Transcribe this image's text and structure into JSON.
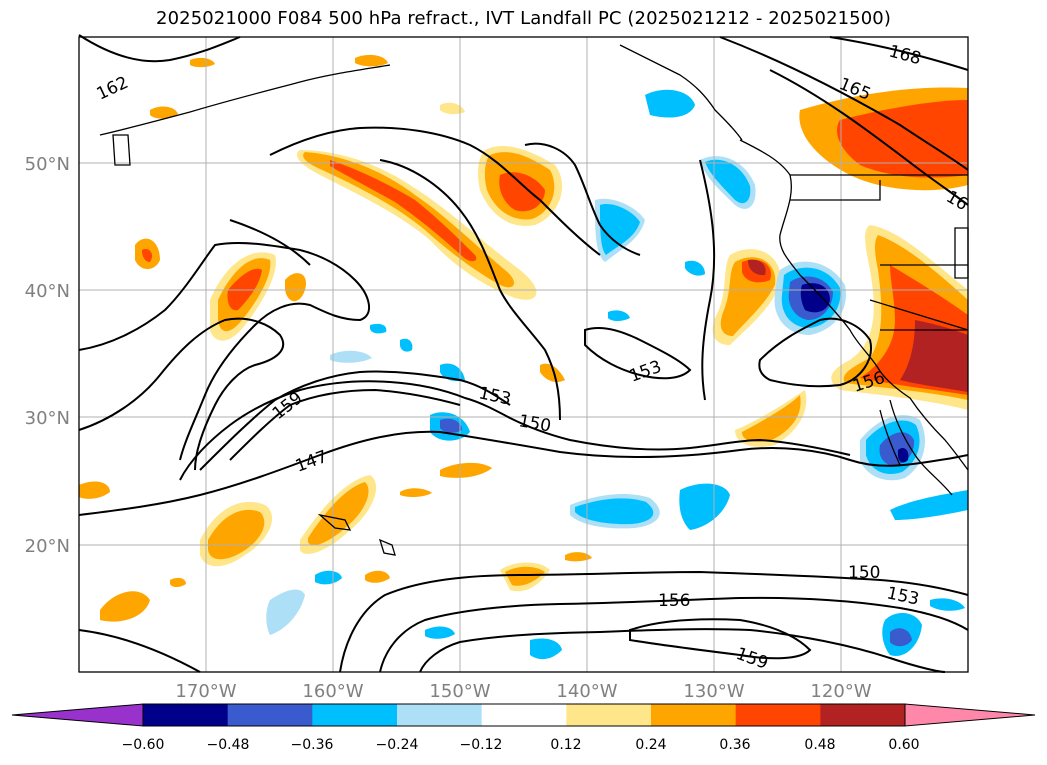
{
  "title": "2025021000 F084 500 hPa refract., IVT Landfall PC (2025021212 - 2025021500)",
  "map": {
    "lon_ticks": [
      "170°W",
      "160°W",
      "150°W",
      "140°W",
      "130°W",
      "120°W"
    ],
    "lat_ticks": [
      "50°N",
      "40°N",
      "30°N",
      "20°N"
    ],
    "contour_labels": [
      "168",
      "165",
      "162",
      "16",
      "159",
      "153",
      "150",
      "147",
      "153",
      "156",
      "150",
      "153",
      "156",
      "159"
    ]
  },
  "colorbar": {
    "ticks": [
      "−0.60",
      "−0.48",
      "−0.36",
      "−0.24",
      "−0.12",
      "0.12",
      "0.24",
      "0.36",
      "0.48",
      "0.60"
    ],
    "colors": [
      "#9932CC",
      "#00008B",
      "#3A5BCD",
      "#00BFFF",
      "#ADDFF7",
      "#FFFFFF",
      "#FFE68A",
      "#FFA500",
      "#FF4500",
      "#B22222",
      "#FF88AA"
    ]
  }
}
